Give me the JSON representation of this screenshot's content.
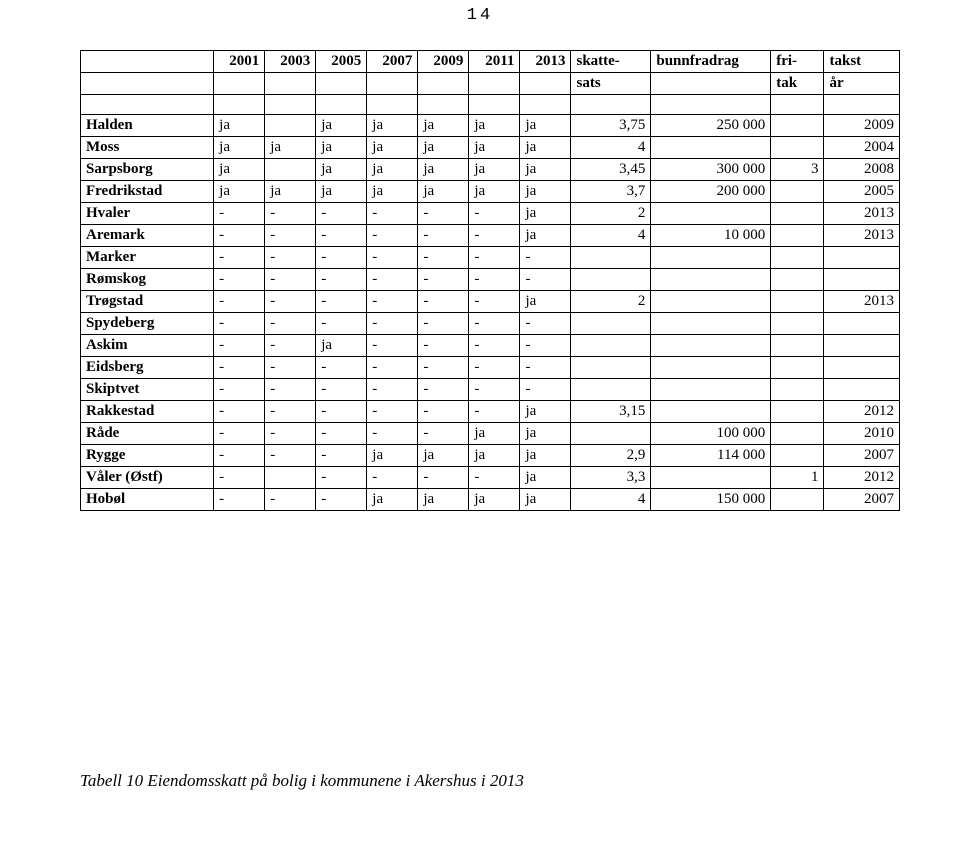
{
  "page_number": "14",
  "table": {
    "type": "table",
    "text_color": "#000000",
    "border_color": "#000000",
    "background_color": "#ffffff",
    "font_size": 15,
    "header_rows": [
      [
        "",
        "2001",
        "2003",
        "2005",
        "2007",
        "2009",
        "2011",
        "2013",
        "skatte-",
        "bunnfradrag",
        "fri-",
        "takst"
      ],
      [
        "",
        "",
        "",
        "",
        "",
        "",
        "",
        "",
        "sats",
        "",
        "tak",
        "år"
      ]
    ],
    "spacer_after_header": true,
    "rows": [
      {
        "label": "Halden",
        "y2001": "ja",
        "y2003": "",
        "y2005": "ja",
        "y2007": "ja",
        "y2009": "ja",
        "y2011": "ja",
        "y2013": "ja",
        "skatte": "3,75",
        "bunn": "250 000",
        "fri": "",
        "takst": "2009"
      },
      {
        "label": "Moss",
        "y2001": "ja",
        "y2003": "ja",
        "y2005": "ja",
        "y2007": "ja",
        "y2009": "ja",
        "y2011": "ja",
        "y2013": "ja",
        "skatte": "4",
        "bunn": "",
        "fri": "",
        "takst": "2004"
      },
      {
        "label": "Sarpsborg",
        "y2001": "ja",
        "y2003": "",
        "y2005": "ja",
        "y2007": "ja",
        "y2009": "ja",
        "y2011": "ja",
        "y2013": "ja",
        "skatte": "3,45",
        "bunn": "300 000",
        "fri": "3",
        "takst": "2008"
      },
      {
        "label": "Fredrikstad",
        "y2001": "ja",
        "y2003": "ja",
        "y2005": "ja",
        "y2007": "ja",
        "y2009": "ja",
        "y2011": "ja",
        "y2013": "ja",
        "skatte": "3,7",
        "bunn": "200 000",
        "fri": "",
        "takst": "2005"
      },
      {
        "label": "Hvaler",
        "y2001": "-",
        "y2003": "-",
        "y2005": "-",
        "y2007": "-",
        "y2009": "-",
        "y2011": "-",
        "y2013": "ja",
        "skatte": "2",
        "bunn": "",
        "fri": "",
        "takst": "2013"
      },
      {
        "label": "Aremark",
        "y2001": "-",
        "y2003": "-",
        "y2005": "-",
        "y2007": "-",
        "y2009": "-",
        "y2011": "-",
        "y2013": "ja",
        "skatte": "4",
        "bunn": "10 000",
        "fri": "",
        "takst": "2013"
      },
      {
        "label": "Marker",
        "y2001": "-",
        "y2003": "-",
        "y2005": "-",
        "y2007": "-",
        "y2009": "-",
        "y2011": "-",
        "y2013": "-",
        "skatte": "",
        "bunn": "",
        "fri": "",
        "takst": ""
      },
      {
        "label": "Rømskog",
        "y2001": "-",
        "y2003": "-",
        "y2005": "-",
        "y2007": "-",
        "y2009": "-",
        "y2011": "-",
        "y2013": "-",
        "skatte": "",
        "bunn": "",
        "fri": "",
        "takst": ""
      },
      {
        "label": "Trøgstad",
        "y2001": "-",
        "y2003": "-",
        "y2005": "-",
        "y2007": "-",
        "y2009": "-",
        "y2011": "-",
        "y2013": "ja",
        "skatte": "2",
        "bunn": "",
        "fri": "",
        "takst": "2013"
      },
      {
        "label": "Spydeberg",
        "y2001": "-",
        "y2003": "-",
        "y2005": "-",
        "y2007": "-",
        "y2009": "-",
        "y2011": "-",
        "y2013": "-",
        "skatte": "",
        "bunn": "",
        "fri": "",
        "takst": ""
      },
      {
        "label": "Askim",
        "y2001": "-",
        "y2003": "-",
        "y2005": "ja",
        "y2007": "-",
        "y2009": "-",
        "y2011": "-",
        "y2013": "-",
        "skatte": "",
        "bunn": "",
        "fri": "",
        "takst": ""
      },
      {
        "label": "Eidsberg",
        "y2001": "-",
        "y2003": "-",
        "y2005": "-",
        "y2007": "-",
        "y2009": "-",
        "y2011": "-",
        "y2013": "-",
        "skatte": "",
        "bunn": "",
        "fri": "",
        "takst": ""
      },
      {
        "label": "Skiptvet",
        "y2001": "-",
        "y2003": "-",
        "y2005": "-",
        "y2007": "-",
        "y2009": "-",
        "y2011": "-",
        "y2013": "-",
        "skatte": "",
        "bunn": "",
        "fri": "",
        "takst": ""
      },
      {
        "label": "Rakkestad",
        "y2001": "-",
        "y2003": "-",
        "y2005": "-",
        "y2007": "-",
        "y2009": "-",
        "y2011": "-",
        "y2013": "ja",
        "skatte": "3,15",
        "bunn": "",
        "fri": "",
        "takst": "2012"
      },
      {
        "label": "Råde",
        "y2001": "-",
        "y2003": "-",
        "y2005": "-",
        "y2007": "-",
        "y2009": "-",
        "y2011": "ja",
        "y2013": "ja",
        "skatte": "",
        "bunn": "100 000",
        "fri": "",
        "takst": "2010"
      },
      {
        "label": "Rygge",
        "y2001": "-",
        "y2003": "-",
        "y2005": "-",
        "y2007": "ja",
        "y2009": "ja",
        "y2011": "ja",
        "y2013": "ja",
        "skatte": "2,9",
        "bunn": "114 000",
        "fri": "",
        "takst": "2007"
      },
      {
        "label": "Våler (Østf)",
        "y2001": "-",
        "y2003": "",
        "y2005": "-",
        "y2007": "-",
        "y2009": "-",
        "y2011": "-",
        "y2013": "ja",
        "skatte": "3,3",
        "bunn": "",
        "fri": "1",
        "takst": "2012"
      },
      {
        "label": "Hobøl",
        "y2001": "-",
        "y2003": "-",
        "y2005": "-",
        "y2007": "ja",
        "y2009": "ja",
        "y2011": "ja",
        "y2013": "ja",
        "skatte": "4",
        "bunn": "150 000",
        "fri": "",
        "takst": "2007"
      }
    ],
    "columns_meta": {
      "numeric_columns": [
        "skatte",
        "bunn",
        "fri",
        "takst"
      ],
      "year_columns": [
        "y2001",
        "y2003",
        "y2005",
        "y2007",
        "y2009",
        "y2011",
        "y2013"
      ]
    }
  },
  "caption": "Tabell 10 Eiendomsskatt på bolig i kommunene i Akershus i 2013"
}
